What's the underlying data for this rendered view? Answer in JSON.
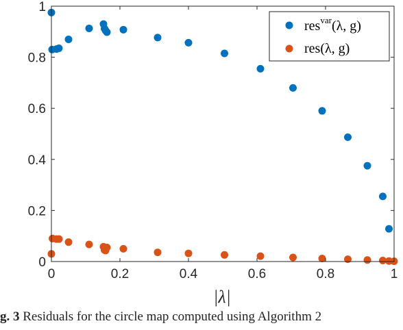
{
  "chart_data": {
    "type": "scatter",
    "xlabel": "|λ|",
    "ylabel": "",
    "xlim": [
      0,
      1
    ],
    "ylim": [
      0,
      1
    ],
    "xticks": [
      "0",
      "0.2",
      "0.4",
      "0.6",
      "0.8",
      "1"
    ],
    "yticks": [
      "0",
      "0.2",
      "0.4",
      "0.6",
      "0.8",
      "1"
    ],
    "legend_position": "top-right",
    "grid": false,
    "series": [
      {
        "name": "res^var(λ, g)",
        "name_base": "res",
        "name_sup": "var",
        "name_args": "(λ, g)",
        "color": "#0072BD",
        "x": [
          0.0,
          0.002,
          0.015,
          0.022,
          0.05,
          0.11,
          0.152,
          0.155,
          0.158,
          0.162,
          0.21,
          0.31,
          0.4,
          0.505,
          0.61,
          0.705,
          0.79,
          0.865,
          0.922,
          0.967,
          0.985
        ],
        "y": [
          0.975,
          0.83,
          0.832,
          0.835,
          0.87,
          0.913,
          0.93,
          0.912,
          0.905,
          0.898,
          0.908,
          0.877,
          0.857,
          0.815,
          0.755,
          0.68,
          0.59,
          0.487,
          0.375,
          0.255,
          0.128
        ]
      },
      {
        "name": "res(λ, g)",
        "name_base": "res",
        "name_args": "(λ, g)",
        "color": "#D95319",
        "x": [
          0.0,
          0.003,
          0.015,
          0.022,
          0.05,
          0.11,
          0.152,
          0.155,
          0.158,
          0.162,
          0.21,
          0.31,
          0.4,
          0.505,
          0.61,
          0.705,
          0.79,
          0.865,
          0.922,
          0.967,
          0.985,
          1.0
        ],
        "y": [
          0.03,
          0.09,
          0.088,
          0.088,
          0.076,
          0.067,
          0.058,
          0.045,
          0.043,
          0.055,
          0.05,
          0.036,
          0.032,
          0.026,
          0.021,
          0.016,
          0.012,
          0.009,
          0.006,
          0.004,
          0.002,
          0.001
        ]
      }
    ]
  },
  "caption": {
    "label": "g. 3",
    "text": "Residuals for the circle map computed using Algorithm 2"
  }
}
